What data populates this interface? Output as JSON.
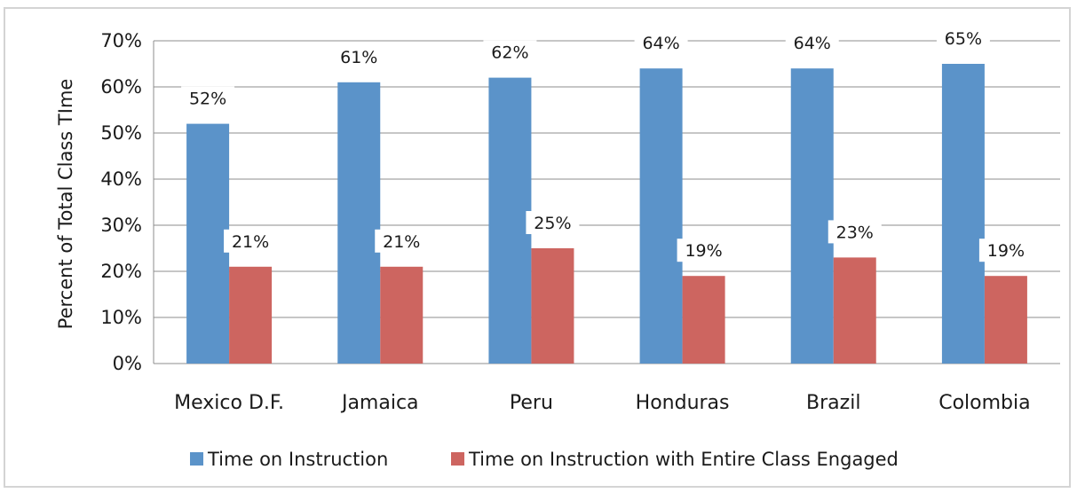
{
  "chart_data": {
    "type": "bar",
    "categories": [
      "Mexico D.F.",
      "Jamaica",
      "Peru",
      "Honduras",
      "Brazil",
      "Colombia"
    ],
    "series": [
      {
        "name": "Time on Instruction",
        "values": [
          52,
          61,
          62,
          64,
          64,
          65
        ],
        "color": "#5b93c9"
      },
      {
        "name": "Time on Instruction with Entire Class Engaged",
        "values": [
          21,
          21,
          25,
          19,
          23,
          19
        ],
        "color": "#cd6560"
      }
    ],
    "data_labels": [
      [
        "52%",
        "61%",
        "62%",
        "64%",
        "64%",
        "65%"
      ],
      [
        "21%",
        "21%",
        "25%",
        "19%",
        "23%",
        "19%"
      ]
    ],
    "title": "",
    "xlabel": "",
    "ylabel": "Percent of Total Class TIme",
    "ylim": [
      0,
      70
    ],
    "yticks": [
      0,
      10,
      20,
      30,
      40,
      50,
      60,
      70
    ],
    "ytick_labels": [
      "0%",
      "10%",
      "20%",
      "30%",
      "40%",
      "50%",
      "60%",
      "70%"
    ],
    "grid": true,
    "legend_position": "bottom"
  }
}
